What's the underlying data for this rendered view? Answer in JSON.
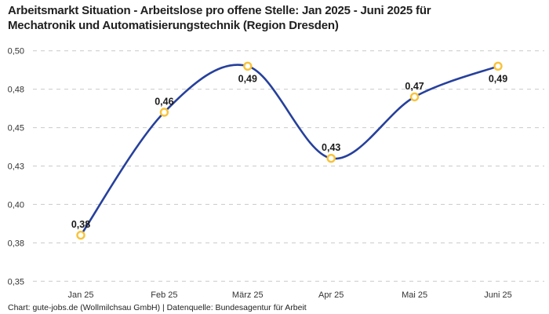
{
  "header": {
    "title_line1": "Arbeitsmarkt Situation - Arbeitslose pro offene Stelle: Jan 2025 - Juni 2025 für",
    "title_line2": "Mechatronik und Automatisierungstechnik (Region Dresden)"
  },
  "chart_data": {
    "type": "line",
    "title": "Arbeitsmarkt Situation - Arbeitslose pro offene Stelle: Jan 2025 - Juni 2025 für Mechatronik und Automatisierungstechnik (Region Dresden)",
    "categories": [
      "Jan 25",
      "Feb 25",
      "März 25",
      "Apr 25",
      "Mai 25",
      "Juni 25"
    ],
    "values": [
      0.38,
      0.46,
      0.49,
      0.43,
      0.47,
      0.49
    ],
    "value_labels": [
      "0,38",
      "0,46",
      "0,49",
      "0,43",
      "0,47",
      "0,49"
    ],
    "value_label_positions": [
      "above",
      "above",
      "below",
      "above",
      "above",
      "below"
    ],
    "xlabel": "",
    "ylabel": "",
    "ylim": [
      0.35,
      0.5
    ],
    "y_ticks": [
      0.35,
      0.375,
      0.4,
      0.425,
      0.45,
      0.475,
      0.5
    ],
    "y_tick_labels": [
      "0,35",
      "0,38",
      "0,40",
      "0,43",
      "0,45",
      "0,48",
      "0,50"
    ],
    "grid": "horizontal-dashed",
    "legend": "none",
    "curve": "smooth-spline",
    "colors": {
      "line": "#26409c",
      "marker_stroke": "#f8c33a",
      "marker_fill": "#ffffff",
      "grid": "#c9c9c9",
      "tick_text": "#333333",
      "value_text": "#1a1a1a"
    }
  },
  "footer": {
    "credit": "Chart: gute-jobs.de (Wollmilchsau GmbH) | Datenquelle: Bundesagentur für Arbeit"
  }
}
